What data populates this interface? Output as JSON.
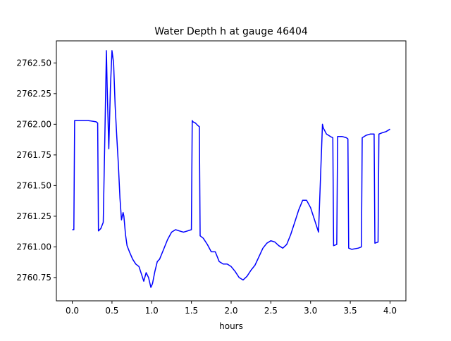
{
  "chart_data": {
    "type": "line",
    "title": "Water Depth h at gauge 46404",
    "xlabel": "hours",
    "ylabel": "",
    "xlim": [
      -0.2,
      4.2
    ],
    "ylim": [
      2760.56,
      2762.68
    ],
    "x_ticks": [
      0.0,
      0.5,
      1.0,
      1.5,
      2.0,
      2.5,
      3.0,
      3.5,
      4.0
    ],
    "x_tick_labels": [
      "0.0",
      "0.5",
      "1.0",
      "1.5",
      "2.0",
      "2.5",
      "3.0",
      "3.5",
      "4.0"
    ],
    "y_ticks": [
      2760.75,
      2761.0,
      2761.25,
      2761.5,
      2761.75,
      2762.0,
      2762.25,
      2762.5
    ],
    "y_tick_labels": [
      "2760.75",
      "2761.00",
      "2761.25",
      "2761.50",
      "2761.75",
      "2762.00",
      "2762.25",
      "2762.50"
    ],
    "grid": false,
    "series": [
      {
        "color": "#0000ff",
        "x": [
          0.0,
          0.02,
          0.03,
          0.1,
          0.2,
          0.3,
          0.32,
          0.33,
          0.36,
          0.39,
          0.41,
          0.43,
          0.44,
          0.46,
          0.48,
          0.5,
          0.52,
          0.54,
          0.56,
          0.58,
          0.6,
          0.62,
          0.64,
          0.65,
          0.67,
          0.69,
          0.72,
          0.76,
          0.8,
          0.84,
          0.87,
          0.9,
          0.93,
          0.96,
          0.99,
          1.01,
          1.04,
          1.07,
          1.1,
          1.15,
          1.2,
          1.25,
          1.3,
          1.35,
          1.4,
          1.45,
          1.5,
          1.51,
          1.52,
          1.55,
          1.58,
          1.6,
          1.61,
          1.65,
          1.7,
          1.75,
          1.8,
          1.85,
          1.9,
          1.95,
          2.0,
          2.05,
          2.1,
          2.15,
          2.2,
          2.25,
          2.3,
          2.35,
          2.4,
          2.45,
          2.5,
          2.55,
          2.6,
          2.65,
          2.7,
          2.75,
          2.8,
          2.85,
          2.9,
          2.95,
          3.0,
          3.05,
          3.1,
          3.15,
          3.16,
          3.2,
          3.25,
          3.28,
          3.29,
          3.33,
          3.34,
          3.4,
          3.45,
          3.47,
          3.48,
          3.52,
          3.6,
          3.64,
          3.65,
          3.7,
          3.75,
          3.8,
          3.81,
          3.85,
          3.86,
          3.9,
          3.95,
          4.0
        ],
        "values": [
          2761.14,
          2761.14,
          2762.03,
          2762.03,
          2762.03,
          2762.02,
          2762.01,
          2761.13,
          2761.15,
          2761.2,
          2761.9,
          2762.6,
          2762.3,
          2761.8,
          2762.3,
          2762.6,
          2762.5,
          2762.15,
          2761.9,
          2761.68,
          2761.4,
          2761.22,
          2761.28,
          2761.25,
          2761.1,
          2761.01,
          2760.96,
          2760.9,
          2760.86,
          2760.84,
          2760.78,
          2760.72,
          2760.79,
          2760.75,
          2760.67,
          2760.7,
          2760.8,
          2760.88,
          2760.9,
          2760.98,
          2761.06,
          2761.12,
          2761.14,
          2761.13,
          2761.12,
          2761.13,
          2761.14,
          2762.03,
          2762.02,
          2762.01,
          2761.99,
          2761.98,
          2761.09,
          2761.07,
          2761.02,
          2760.96,
          2760.96,
          2760.88,
          2760.86,
          2760.86,
          2760.84,
          2760.8,
          2760.75,
          2760.73,
          2760.76,
          2760.81,
          2760.85,
          2760.92,
          2760.99,
          2761.03,
          2761.05,
          2761.04,
          2761.01,
          2760.99,
          2761.02,
          2761.1,
          2761.2,
          2761.3,
          2761.38,
          2761.38,
          2761.32,
          2761.22,
          2761.12,
          2762.0,
          2761.97,
          2761.92,
          2761.9,
          2761.89,
          2761.01,
          2761.02,
          2761.9,
          2761.9,
          2761.89,
          2761.88,
          2760.99,
          2760.98,
          2760.99,
          2761.0,
          2761.89,
          2761.91,
          2761.92,
          2761.92,
          2761.03,
          2761.04,
          2761.92,
          2761.93,
          2761.94,
          2761.96
        ]
      }
    ]
  }
}
